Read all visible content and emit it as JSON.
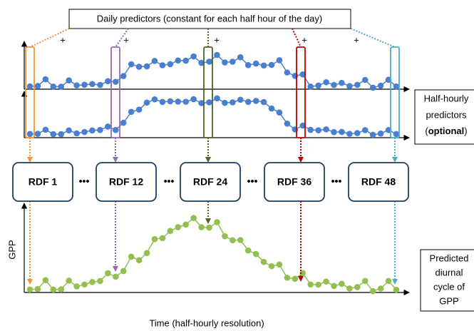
{
  "header": {
    "title": "Daily predictors (constant for each half hour of the day)"
  },
  "plus_signs": [
    "+",
    "+",
    "+",
    "+",
    "+"
  ],
  "side_labels": {
    "half_hourly": {
      "line1": "Half-hourly",
      "line2": "predictors",
      "open": "(",
      "bold": "optional",
      "close": ")"
    },
    "output": [
      "Predicted",
      "diurnal",
      "cycle of",
      "GPP"
    ]
  },
  "nodes": [
    {
      "label": "RDF 1"
    },
    {
      "label": "RDF 12"
    },
    {
      "label": "RDF 24"
    },
    {
      "label": "RDF 36"
    },
    {
      "label": "RDF 48"
    }
  ],
  "ellipses": [
    "•••",
    "•••",
    "•••",
    "•••"
  ],
  "axis": {
    "y_label": "GPP",
    "x_label": "Time (half-hourly resolution)"
  }
}
